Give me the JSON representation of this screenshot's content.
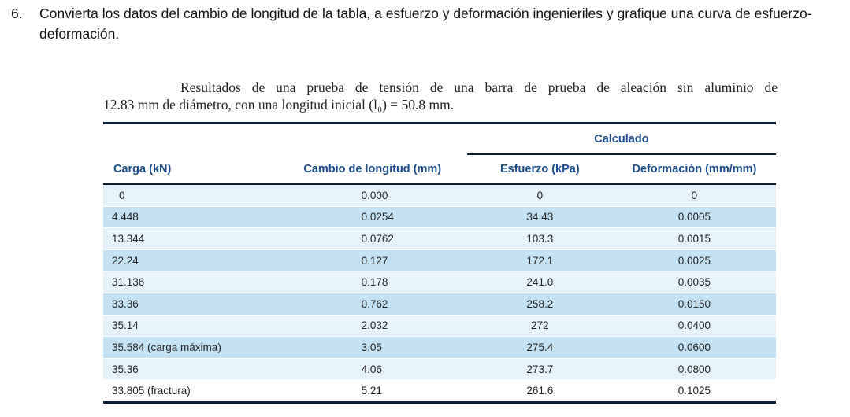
{
  "question": {
    "number": "6.",
    "text": "Convierta los datos del cambio de longitud de la tabla, a esfuerzo y deformación ingenieriles y grafique una curva de esfuerzo-deformación."
  },
  "caption": {
    "line1": "Resultados de una prueba de tensión de una barra de prueba de aleación sin aluminio de",
    "line2": "12.83 mm de diámetro, con una longitud inicial (l₀) = 50.8 mm."
  },
  "table": {
    "group_header": "Calculado",
    "headers": [
      "Carga (kN)",
      "Cambio de longitud (mm)",
      "Esfuerzo (kPa)",
      "Deformación (mm/mm)"
    ],
    "rows": [
      [
        "0",
        "0.000",
        "0",
        "0"
      ],
      [
        "4.448",
        "0.0254",
        "34.43",
        "0.0005"
      ],
      [
        "13.344",
        "0.0762",
        "103.3",
        "0.0015"
      ],
      [
        "22.24",
        "0.127",
        "172.1",
        "0.0025"
      ],
      [
        "31.136",
        "0.178",
        "241.0",
        "0.0035"
      ],
      [
        "33.36",
        "0.762",
        "258.2",
        "0.0150"
      ],
      [
        "35.14",
        "2.032",
        "272",
        "0.0400"
      ],
      [
        "35.584 (carga máxima)",
        "3.05",
        "275.4",
        "0.0600"
      ],
      [
        "35.36",
        "4.06",
        "273.7",
        "0.0800"
      ],
      [
        "33.805 (fractura)",
        "5.21",
        "261.6",
        "0.1025"
      ]
    ]
  },
  "colors": {
    "header_text": "#1a4d8c",
    "rule": "#0a1f3a",
    "row_shade": "#c3e2f4",
    "row_light": "#e7f3fb"
  }
}
